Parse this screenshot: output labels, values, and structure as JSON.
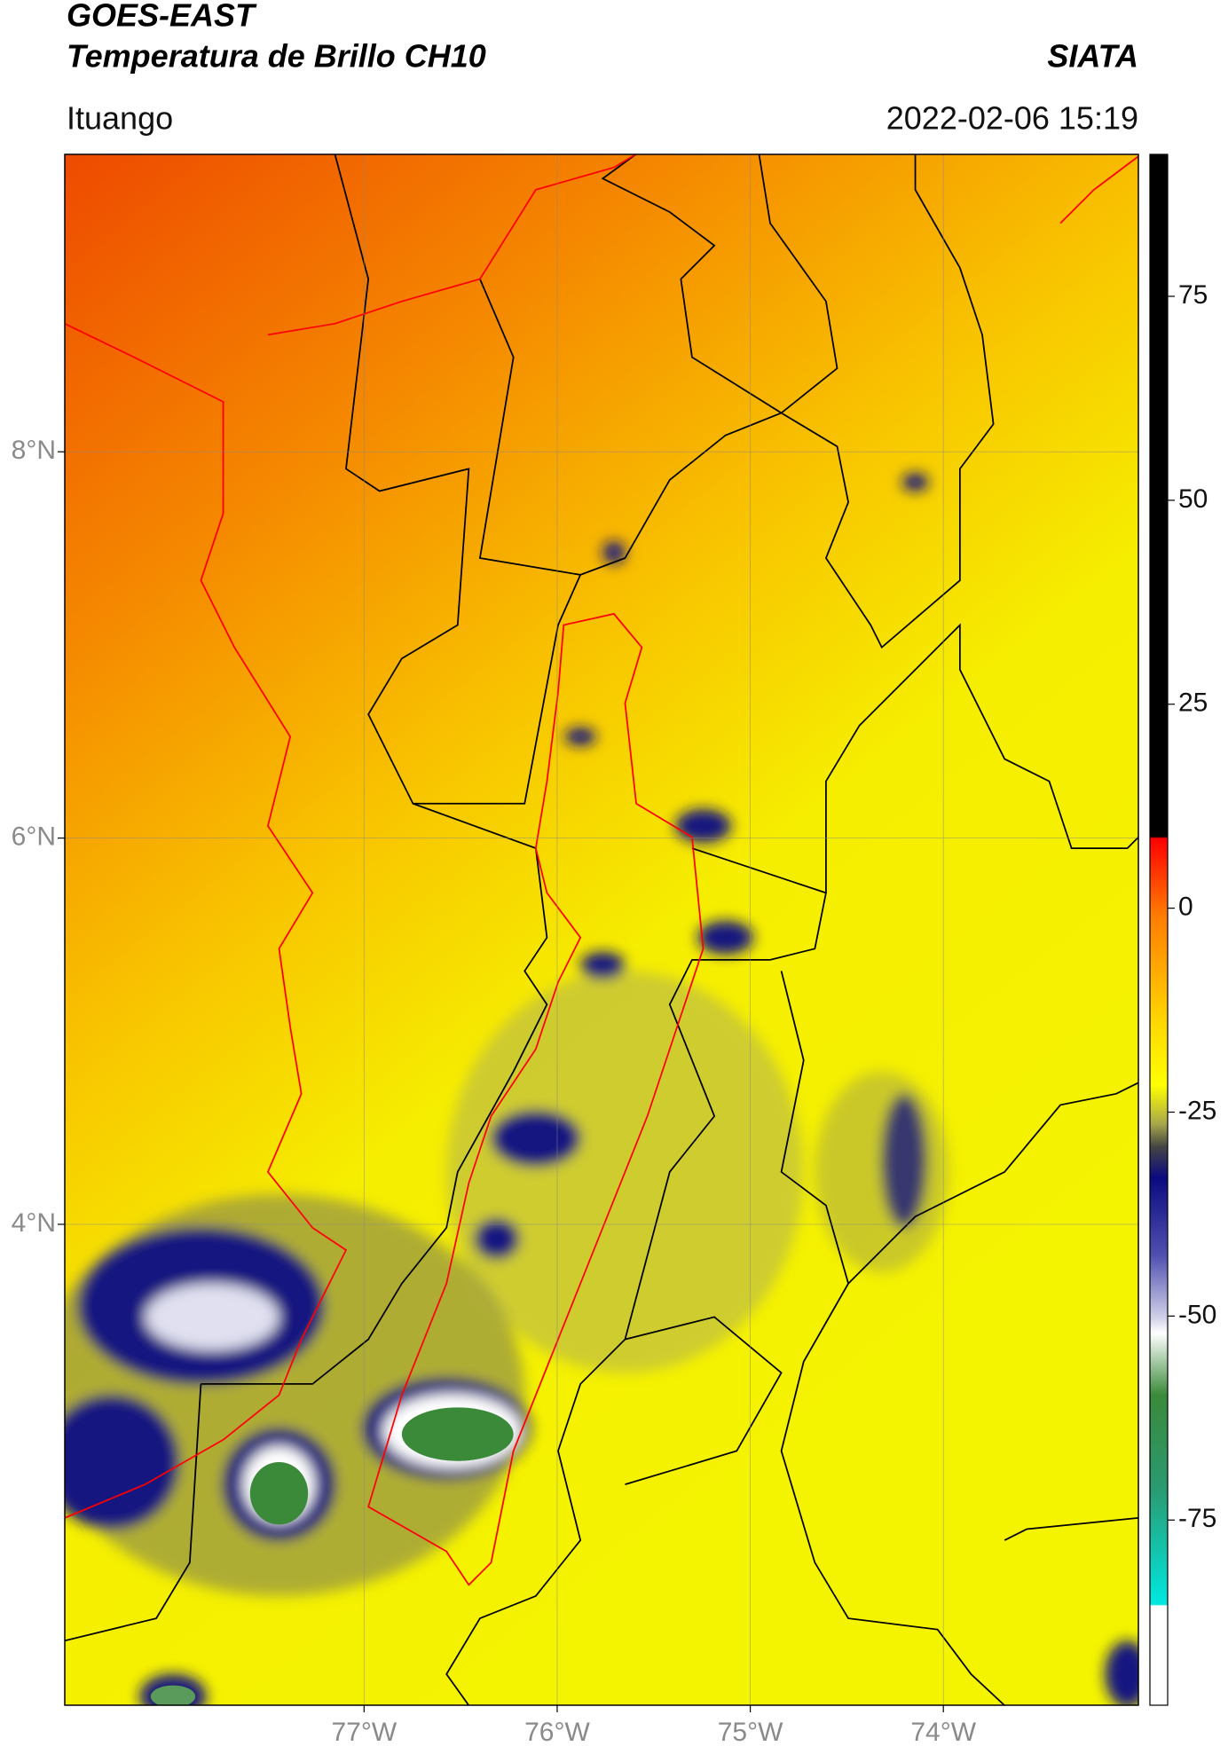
{
  "header": {
    "title": "GOES-EAST",
    "subtitle": "Temperatura de Brillo CH10",
    "agency": "SIATA",
    "location": "Ituango",
    "datetime": "2022-02-06 15:19"
  },
  "map": {
    "xlim": [
      -78.55,
      -72.99
    ],
    "ylim": [
      1.51,
      9.54
    ],
    "xticks": [
      {
        "value": -77,
        "label": "77°W"
      },
      {
        "value": -76,
        "label": "76°W"
      },
      {
        "value": -75,
        "label": "75°W"
      },
      {
        "value": -74,
        "label": "74°W"
      }
    ],
    "yticks": [
      {
        "value": 8,
        "label": "8°N"
      },
      {
        "value": 6,
        "label": "6°N"
      },
      {
        "value": 4,
        "label": "4°N"
      }
    ]
  },
  "colorbar": {
    "lim": [
      -97.7,
      92.4
    ],
    "ticks": [
      75,
      50,
      25,
      0,
      -25,
      -50,
      -75
    ]
  }
}
